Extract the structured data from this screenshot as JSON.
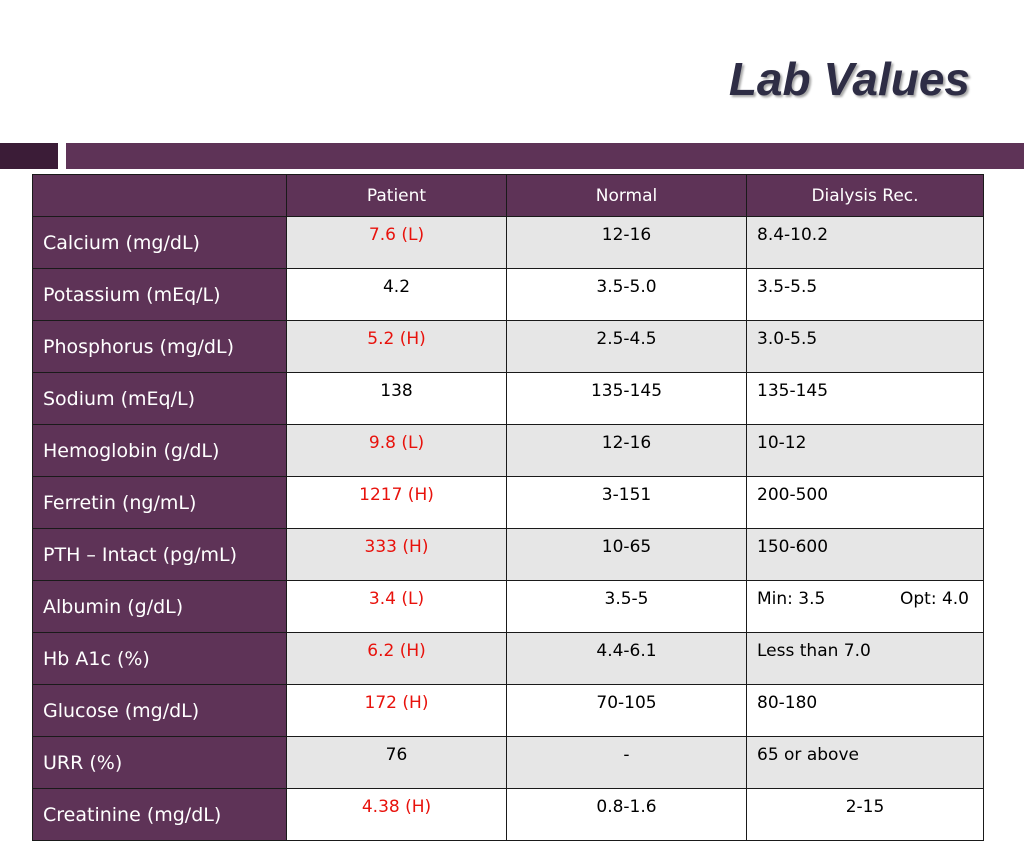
{
  "slide": {
    "title": "Lab Values"
  },
  "colors": {
    "accent": "#5e3357",
    "accent_dark": "#3b1c37",
    "abnormal": "#e8120c",
    "row_shade": "#e6e6e6"
  },
  "table": {
    "headers": [
      "",
      "Patient",
      "Normal",
      "Dialysis Rec."
    ],
    "rows": [
      {
        "label": "Calcium (mg/dL)",
        "patient": "7.6 (L)",
        "normal": "12-16",
        "dialysis": "8.4-10.2"
      },
      {
        "label": "Potassium (mEq/L)",
        "patient": "4.2",
        "normal": "3.5-5.0",
        "dialysis": "3.5-5.5"
      },
      {
        "label": "Phosphorus (mg/dL)",
        "patient": "5.2 (H)",
        "normal": "2.5-4.5",
        "dialysis": "3.0-5.5"
      },
      {
        "label": "Sodium (mEq/L)",
        "patient": "138",
        "normal": "135-145",
        "dialysis": "135-145"
      },
      {
        "label": "Hemoglobin (g/dL)",
        "patient": "9.8 (L)",
        "normal": "12-16",
        "dialysis": "10-12"
      },
      {
        "label": "Ferretin (ng/mL)",
        "patient": "1217 (H)",
        "normal": "3-151",
        "dialysis": "200-500"
      },
      {
        "label": "PTH – Intact (pg/mL)",
        "patient": "333 (H)",
        "normal": "10-65",
        "dialysis": "150-600"
      },
      {
        "label": "Albumin (g/dL)",
        "patient": "3.4 (L)",
        "normal": "3.5-5",
        "dialysis_min": "Min: 3.5",
        "dialysis_opt": "Opt: 4.0"
      },
      {
        "label": "Hb A1c (%)",
        "patient": "6.2 (H)",
        "normal": "4.4-6.1",
        "dialysis": "Less than 7.0"
      },
      {
        "label": "Glucose (mg/dL)",
        "patient": "172 (H)",
        "normal": "70-105",
        "dialysis": "80-180"
      },
      {
        "label": "URR (%)",
        "patient": "76",
        "normal": "-",
        "dialysis": "65 or above"
      },
      {
        "label": "Creatinine (mg/dL)",
        "patient": "4.38 (H)",
        "normal": "0.8-1.6",
        "dialysis": "2-15"
      }
    ]
  }
}
